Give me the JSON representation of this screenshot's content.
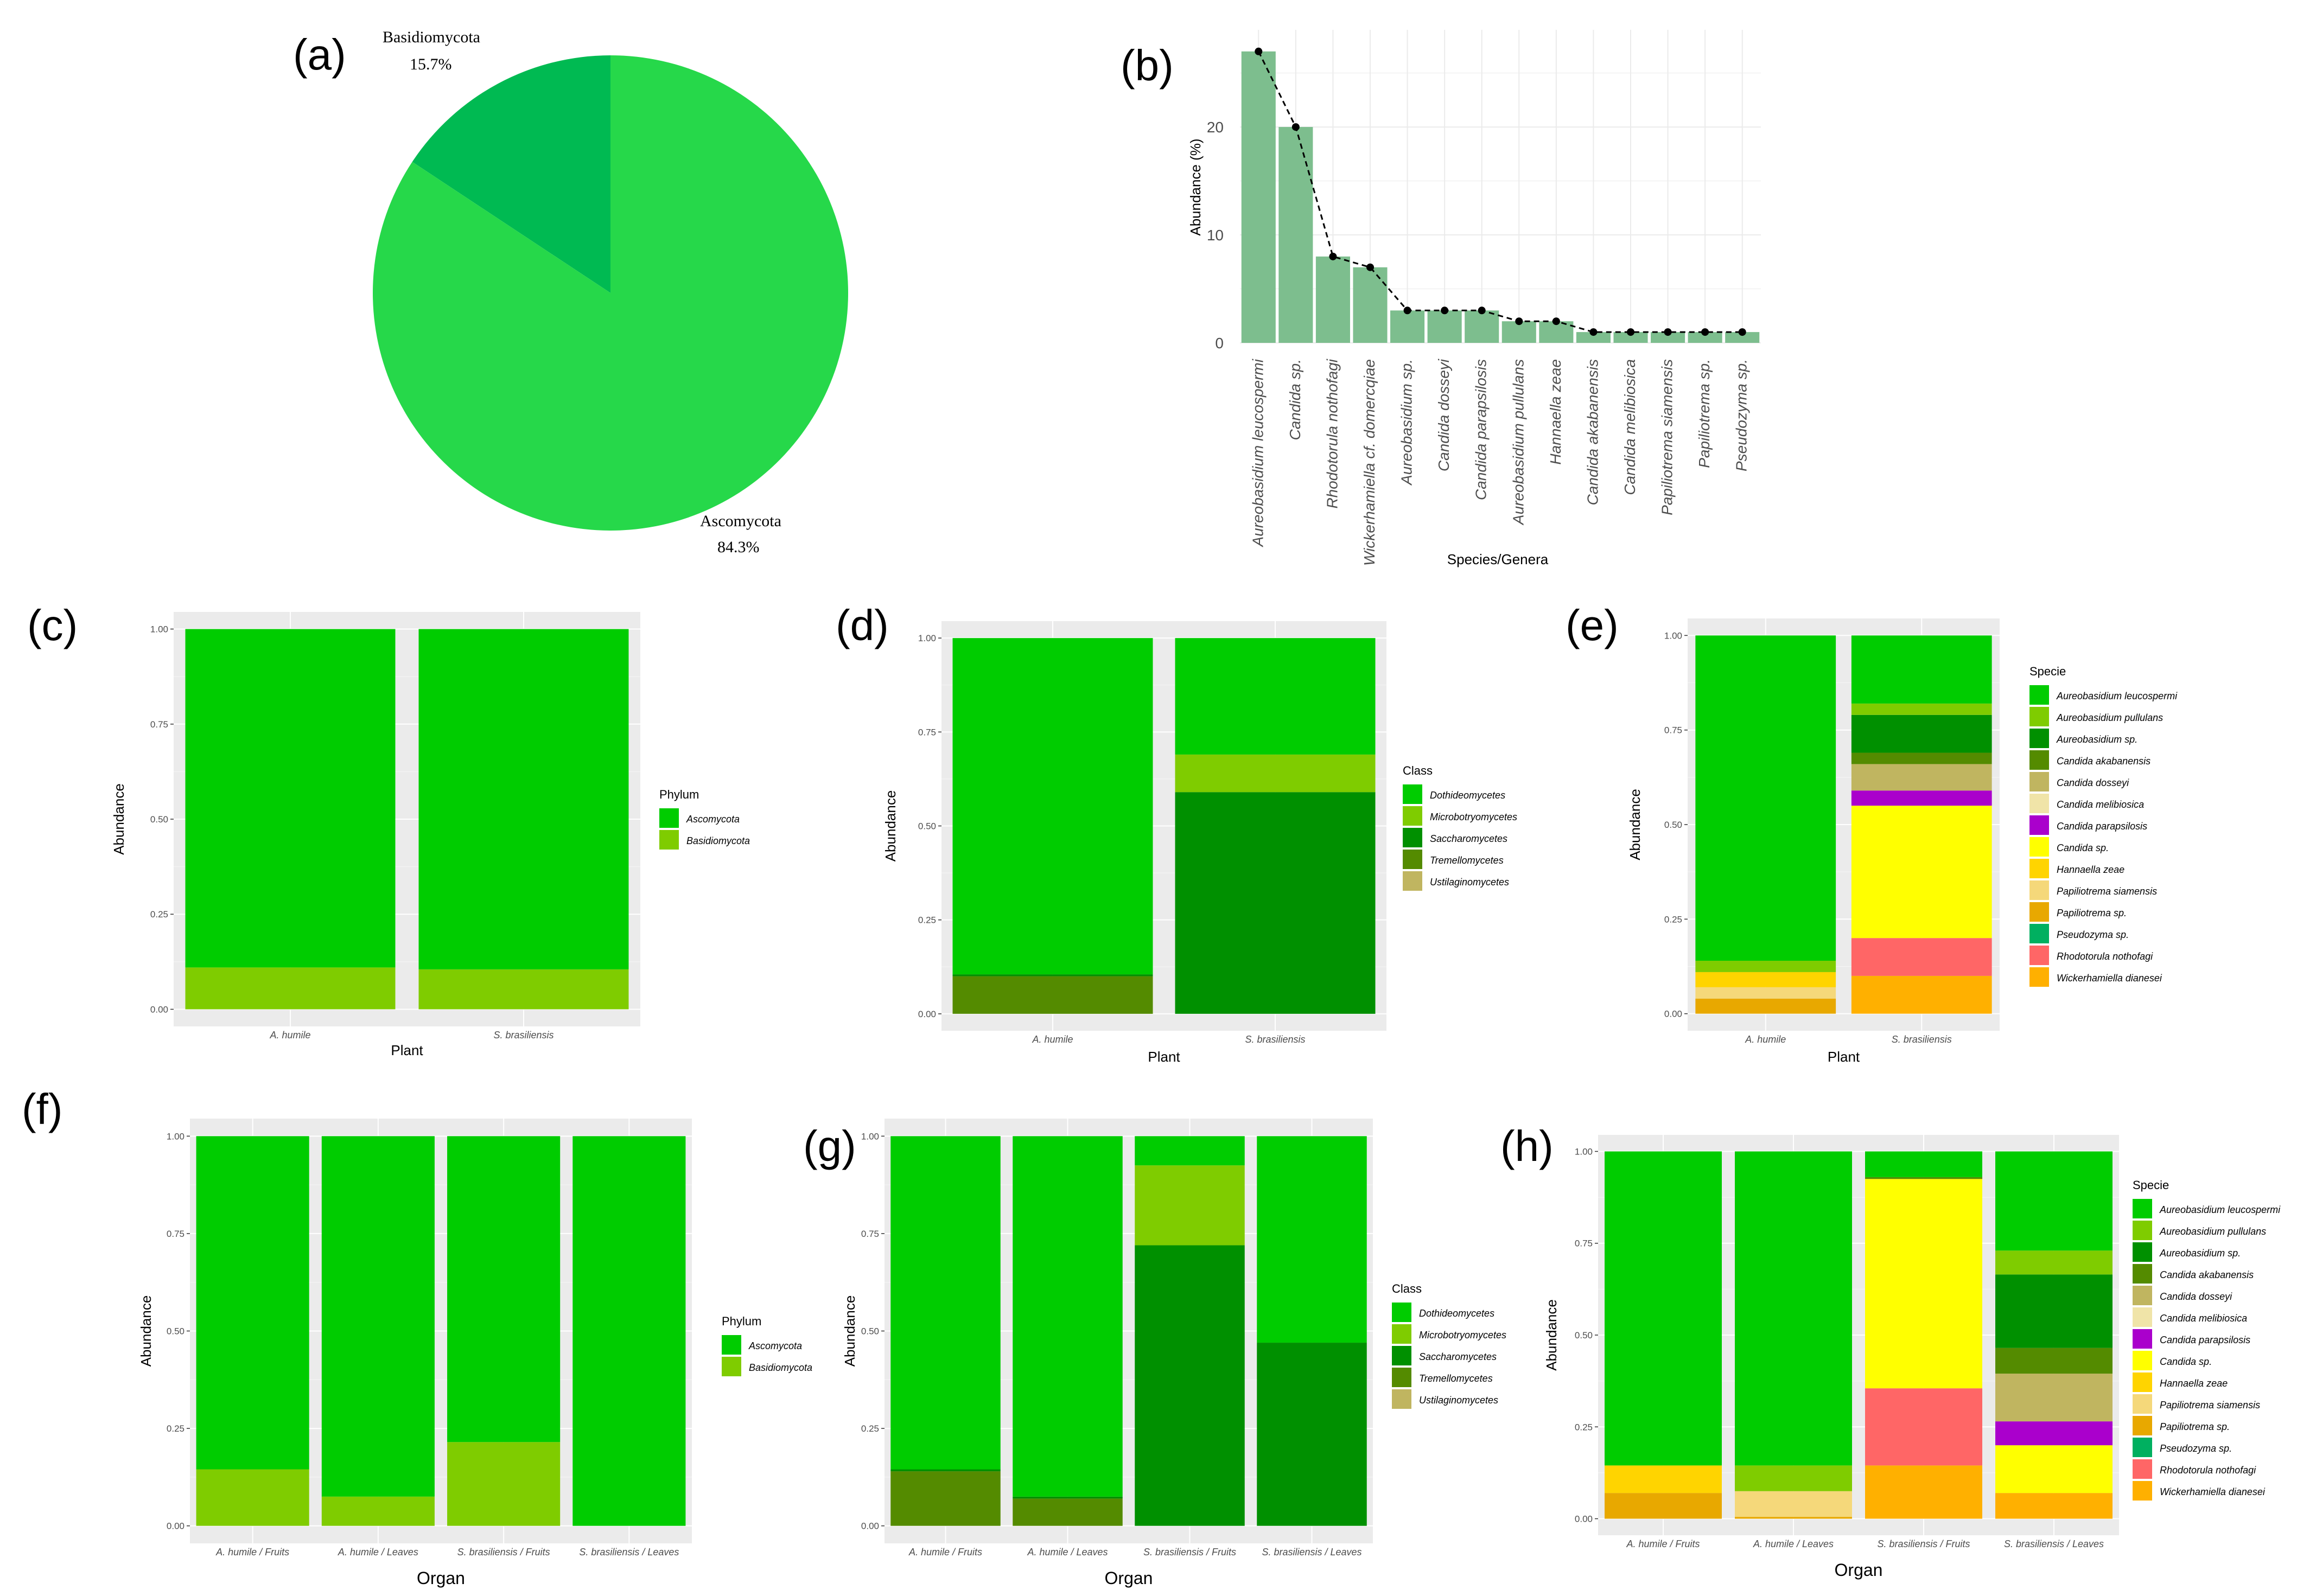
{
  "colors": {
    "Ascomycota": "#00CC00",
    "Basidiomycota": "#7FCC00",
    "Dothideomycetes": "#00CC00",
    "Microbotryomycetes": "#7FCC00",
    "Saccharomycetes": "#009000",
    "Tremellomycetes": "#548B00",
    "Ustilaginomycetes": "#C0B560",
    "Aureobasidium leucospermi": "#00CC00",
    "Aureobasidium pullulans": "#7FCC00",
    "Aureobasidium sp.": "#009000",
    "Candida akabanensis": "#548B00",
    "Candida dosseyi": "#C0B560",
    "Candida melibiosica": "#F0E4A8",
    "Candida parapsilosis": "#AA00CC",
    "Candida sp.": "#FFFF00",
    "Hannaella zeae": "#FFD400",
    "Papiliotrema siamensis": "#F5D87A",
    "Papiliotrema sp.": "#E8A800",
    "Pseudozyma sp.": "#00B060",
    "Rhodotorula nothofagi": "#FF6666",
    "Wickerhamiella dianesei": "#FFB000",
    "pie_large": "#26D84A",
    "pie_small": "#00BA52",
    "bar_b": "#7DBE8E",
    "panel_bg": "#EBEBEB",
    "grid": "#FFFFFF"
  },
  "chart_data": [
    {
      "panel": "(a)",
      "type": "pie",
      "slices": [
        {
          "label": "Basidiomycota",
          "pct_label": "15.7%",
          "value": 15.7
        },
        {
          "label": "Ascomycota",
          "pct_label": "84.3%",
          "value": 84.3
        }
      ]
    },
    {
      "panel": "(b)",
      "type": "bar",
      "categories": [
        "Aureobasidium leucospermi",
        "Candida sp.",
        "Rhodotorula nothofagi",
        "Wickerhamiella cf. domercqiae",
        "Aureobasidium sp.",
        "Candida dosseyi",
        "Candida parapsilosis",
        "Aureobasidium pullulans",
        "Hannaella zeae",
        "Candida akabanensis",
        "Candida melibiosica",
        "Papiliotrema siamensis",
        "Papiliotrema sp.",
        "Pseudozyma sp."
      ],
      "values": [
        27,
        20,
        8,
        7,
        3,
        3,
        3,
        2,
        2,
        1,
        1,
        1,
        1,
        1
      ],
      "yticks": [
        "0",
        "10",
        "20"
      ],
      "ylim": [
        0,
        29
      ],
      "xlabel": "Species/Genera",
      "ylabel": "Abundance (%)"
    },
    {
      "panel": "(c)",
      "type": "bar",
      "stacked": true,
      "categories": [
        "A. humile",
        "S. brasiliensis"
      ],
      "series": [
        {
          "name": "Basidiomycota",
          "values": [
            0.11,
            0.105
          ]
        },
        {
          "name": "Ascomycota",
          "values": [
            0.89,
            0.895
          ]
        }
      ],
      "legend_title": "Phylum",
      "legend_items": [
        "Ascomycota",
        "Basidiomycota"
      ],
      "xlabel": "Plant",
      "ylabel": "Abundance",
      "yticks": [
        "0.00",
        "0.25",
        "0.50",
        "0.75",
        "1.00"
      ]
    },
    {
      "panel": "(d)",
      "type": "bar",
      "stacked": true,
      "categories": [
        "A. humile",
        "S. brasiliensis"
      ],
      "series": [
        {
          "name": "Tremellomycetes",
          "values": [
            0.1,
            0.0
          ]
        },
        {
          "name": "Saccharomycetes",
          "values": [
            0.005,
            0.59
          ]
        },
        {
          "name": "Microbotryomycetes",
          "values": [
            0.0,
            0.1
          ]
        },
        {
          "name": "Dothideomycetes",
          "values": [
            0.895,
            0.31
          ]
        }
      ],
      "legend_title": "Class",
      "legend_items": [
        "Dothideomycetes",
        "Microbotryomycetes",
        "Saccharomycetes",
        "Tremellomycetes",
        "Ustilaginomycetes"
      ],
      "xlabel": "Plant",
      "ylabel": "Abundance",
      "yticks": [
        "0.00",
        "0.25",
        "0.50",
        "0.75",
        "1.00"
      ]
    },
    {
      "panel": "(e)",
      "type": "bar",
      "stacked": true,
      "categories": [
        "A. humile",
        "S. brasiliensis"
      ],
      "series": [
        {
          "name": "Papiliotrema sp.",
          "values": [
            0.04,
            0.0
          ]
        },
        {
          "name": "Papiliotrema siamensis",
          "values": [
            0.03,
            0.0
          ]
        },
        {
          "name": "Hannaella zeae",
          "values": [
            0.04,
            0.0
          ]
        },
        {
          "name": "Aureobasidium pullulans",
          "values": [
            0.03,
            0.0
          ]
        },
        {
          "name": "Wickerhamiella dianesei",
          "values": [
            0.0,
            0.1
          ]
        },
        {
          "name": "Rhodotorula nothofagi",
          "values": [
            0.0,
            0.1
          ]
        },
        {
          "name": "Candida sp.",
          "values": [
            0.0,
            0.35
          ]
        },
        {
          "name": "Candida parapsilosis",
          "values": [
            0.0,
            0.04
          ]
        },
        {
          "name": "Candida dosseyi",
          "values": [
            0.0,
            0.07
          ]
        },
        {
          "name": "Candida akabanensis",
          "values": [
            0.0,
            0.03
          ]
        },
        {
          "name": "Aureobasidium sp.",
          "values": [
            0.0,
            0.1
          ]
        },
        {
          "name": "Aureobasidium pullulans",
          "values": [
            0.0,
            0.03
          ]
        },
        {
          "name": "Aureobasidium leucospermi",
          "values": [
            0.86,
            0.18
          ]
        }
      ],
      "legend_title": "Specie",
      "legend_items": [
        "Aureobasidium leucospermi",
        "Aureobasidium pullulans",
        "Aureobasidium sp.",
        "Candida akabanensis",
        "Candida dosseyi",
        "Candida melibiosica",
        "Candida parapsilosis",
        "Candida sp.",
        "Hannaella zeae",
        "Papiliotrema siamensis",
        "Papiliotrema sp.",
        "Pseudozyma sp.",
        "Rhodotorula nothofagi",
        "Wickerhamiella dianesei"
      ],
      "xlabel": "Plant",
      "ylabel": "Abundance",
      "yticks": [
        "0.00",
        "0.25",
        "0.50",
        "0.75",
        "1.00"
      ]
    },
    {
      "panel": "(f)",
      "type": "bar",
      "stacked": true,
      "categories": [
        "A. humile / Fruits",
        "A. humile / Leaves",
        "S. brasiliensis / Fruits",
        "S. brasiliensis / Leaves"
      ],
      "series": [
        {
          "name": "Basidiomycota",
          "values": [
            0.145,
            0.075,
            0.215,
            0.0
          ]
        },
        {
          "name": "Ascomycota",
          "values": [
            0.855,
            0.925,
            0.785,
            1.0
          ]
        }
      ],
      "legend_title": "Phylum",
      "legend_items": [
        "Ascomycota",
        "Basidiomycota"
      ],
      "xlabel": "Organ",
      "ylabel": "Abundance",
      "yticks": [
        "0.00",
        "0.25",
        "0.50",
        "0.75",
        "1.00"
      ]
    },
    {
      "panel": "(g)",
      "type": "bar",
      "stacked": true,
      "categories": [
        "A. humile / Fruits",
        "A. humile / Leaves",
        "S. brasiliensis / Fruits",
        "S. brasiliensis / Leaves"
      ],
      "series": [
        {
          "name": "Tremellomycetes",
          "values": [
            0.14,
            0.07,
            0.0,
            0.0
          ]
        },
        {
          "name": "Saccharomycetes",
          "values": [
            0.005,
            0.005,
            0.72,
            0.47
          ]
        },
        {
          "name": "Microbotryomycetes",
          "values": [
            0.0,
            0.0,
            0.205,
            0.0
          ]
        },
        {
          "name": "Dothideomycetes",
          "values": [
            0.855,
            0.925,
            0.075,
            0.53
          ]
        }
      ],
      "legend_title": "Class",
      "legend_items": [
        "Dothideomycetes",
        "Microbotryomycetes",
        "Saccharomycetes",
        "Tremellomycetes",
        "Ustilaginomycetes"
      ],
      "xlabel": "Organ",
      "ylabel": "Abundance",
      "yticks": [
        "0.00",
        "0.25",
        "0.50",
        "0.75",
        "1.00"
      ]
    },
    {
      "panel": "(h)",
      "type": "bar",
      "stacked": true,
      "categories": [
        "A. humile / Fruits",
        "A. humile / Leaves",
        "S. brasiliensis / Fruits",
        "S. brasiliensis / Leaves"
      ],
      "series": [
        {
          "name": "Papiliotrema sp.",
          "values": [
            0.07,
            0.005,
            0.0,
            0.0
          ]
        },
        {
          "name": "Papiliotrema siamensis",
          "values": [
            0.0,
            0.07,
            0.0,
            0.0
          ]
        },
        {
          "name": "Hannaella zeae",
          "values": [
            0.075,
            0.0,
            0.0,
            0.0
          ]
        },
        {
          "name": "Aureobasidium pullulans",
          "values": [
            0.0,
            0.07,
            0.0,
            0.0
          ]
        },
        {
          "name": "Wickerhamiella dianesei",
          "values": [
            0.0,
            0.0,
            0.145,
            0.07
          ]
        },
        {
          "name": "Rhodotorula nothofagi",
          "values": [
            0.0,
            0.0,
            0.21,
            0.0
          ]
        },
        {
          "name": "Candida sp.",
          "values": [
            0.0,
            0.0,
            0.57,
            0.13
          ]
        },
        {
          "name": "Candida parapsilosis",
          "values": [
            0.0,
            0.0,
            0.0,
            0.065
          ]
        },
        {
          "name": "Candida dosseyi",
          "values": [
            0.0,
            0.0,
            0.0,
            0.13
          ]
        },
        {
          "name": "Candida akabanensis",
          "values": [
            0.0,
            0.0,
            0.005,
            0.07
          ]
        },
        {
          "name": "Aureobasidium sp.",
          "values": [
            0.0,
            0.0,
            0.0,
            0.2
          ]
        },
        {
          "name": "Aureobasidium pullulans",
          "values": [
            0.0,
            0.0,
            0.0,
            0.065
          ]
        },
        {
          "name": "Aureobasidium leucospermi",
          "values": [
            0.855,
            0.855,
            0.07,
            0.27
          ]
        }
      ],
      "legend_title": "Specie",
      "legend_items": [
        "Aureobasidium leucospermi",
        "Aureobasidium pullulans",
        "Aureobasidium sp.",
        "Candida akabanensis",
        "Candida dosseyi",
        "Candida melibiosica",
        "Candida parapsilosis",
        "Candida sp.",
        "Hannaella zeae",
        "Papiliotrema siamensis",
        "Papiliotrema sp.",
        "Pseudozyma sp.",
        "Rhodotorula nothofagi",
        "Wickerhamiella dianesei"
      ],
      "xlabel": "Organ",
      "ylabel": "Abundance",
      "yticks": [
        "0.00",
        "0.25",
        "0.50",
        "0.75",
        "1.00"
      ]
    }
  ]
}
